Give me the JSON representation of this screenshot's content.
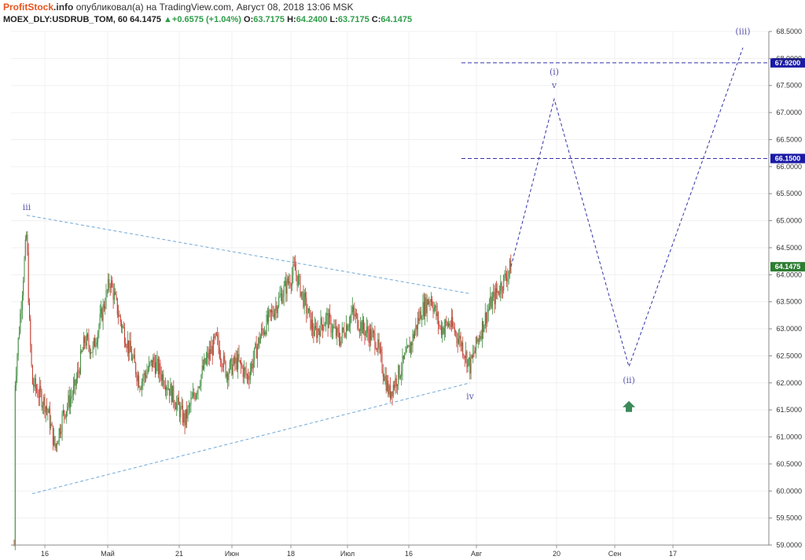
{
  "header": {
    "brand_part1": "Profit",
    "brand_part2": "Stock",
    "brand_part3": ".info",
    "published_text": " опубликовал(а) на TradingView.com, Август 08, 2018 13:06 MSK",
    "symbol": "MOEX_DLY:USDRUB_TOM, 60",
    "last": "64.1475",
    "change_arrow": "▲",
    "change": "+0.6575 (+1.04%)",
    "o_label": "O:",
    "o_value": "63.7175",
    "h_label": "H:",
    "h_value": "64.2400",
    "l_label": "L:",
    "l_value": "63.7175",
    "c_label": "C:",
    "c_value": "64.1475"
  },
  "colors": {
    "up_candle": "#3c8a3c",
    "down_candle": "#c0392b",
    "trendline": "#6fa8d8",
    "projection": "#3333aa",
    "level_tag": "#1a1aa6",
    "last_price_tag": "#2e7d32",
    "arrow": "#3a8a5a",
    "wave_label": "#5a5ab0"
  },
  "chart_data": {
    "type": "candlestick",
    "symbol": "MOEX_DLY:USDRUB_TOM",
    "timeframe": "60",
    "y_axis": {
      "range": [
        59.0,
        68.5
      ],
      "ticks": [
        "59.0000",
        "59.5000",
        "60.0000",
        "60.5000",
        "61.0000",
        "61.5000",
        "62.0000",
        "62.5000",
        "63.0000",
        "63.5000",
        "64.0000",
        "64.5000",
        "65.0000",
        "65.5000",
        "66.0000",
        "66.5000",
        "67.0000",
        "67.5000",
        "68.0000",
        "68.5000"
      ]
    },
    "x_axis": {
      "ticks": [
        "16",
        "Май",
        "21",
        "Июн",
        "18",
        "Июл",
        "16",
        "Авг",
        "20",
        "Сен",
        "17"
      ]
    },
    "price_series_approx": [
      {
        "x": "начало апреля",
        "y": 59.0
      },
      {
        "x": "начало апреля",
        "y": 60.5
      },
      {
        "x": "начало апреля",
        "y": 63.0
      },
      {
        "x": "начало апреля",
        "y": 61.8
      },
      {
        "x": "~11 апр",
        "y": 64.8
      },
      {
        "x": "~12 апр",
        "y": 63.2
      },
      {
        "x": "~13 апр",
        "y": 62.0
      },
      {
        "x": "~16 апр",
        "y": 61.6
      },
      {
        "x": "~17 апр",
        "y": 61.4
      },
      {
        "x": "~18 апр",
        "y": 60.8
      },
      {
        "x": "~20 апр",
        "y": 61.4
      },
      {
        "x": "~23 апр",
        "y": 61.9
      },
      {
        "x": "~25 апр",
        "y": 62.8
      },
      {
        "x": "~27 апр",
        "y": 62.6
      },
      {
        "x": "~30 апр",
        "y": 63.9
      },
      {
        "x": "~3 мая",
        "y": 63.2
      },
      {
        "x": "~7 мая",
        "y": 62.6
      },
      {
        "x": "~10 мая",
        "y": 62.0
      },
      {
        "x": "~14 мая",
        "y": 62.4
      },
      {
        "x": "~17 мая",
        "y": 62.0
      },
      {
        "x": "~21 мая",
        "y": 61.3
      },
      {
        "x": "~24 мая",
        "y": 61.9
      },
      {
        "x": "~28 мая",
        "y": 62.4
      },
      {
        "x": "~31 мая",
        "y": 62.8
      },
      {
        "x": "~4 июн",
        "y": 62.2
      },
      {
        "x": "~7 июн",
        "y": 62.4
      },
      {
        "x": "~11 июн",
        "y": 62.1
      },
      {
        "x": "~13 июн",
        "y": 62.9
      },
      {
        "x": "~18 июн",
        "y": 64.1
      },
      {
        "x": "~20 июн",
        "y": 63.6
      },
      {
        "x": "~22 июн",
        "y": 62.9
      },
      {
        "x": "~26 июн",
        "y": 63.2
      },
      {
        "x": "~29 июн",
        "y": 62.8
      },
      {
        "x": "~3 июл",
        "y": 63.3
      },
      {
        "x": "~6 июл",
        "y": 63.0
      },
      {
        "x": "~9 июл",
        "y": 62.8
      },
      {
        "x": "~11 июл",
        "y": 61.8
      },
      {
        "x": "~13 июл",
        "y": 62.1
      },
      {
        "x": "~16 июл",
        "y": 62.6
      },
      {
        "x": "~18 июл",
        "y": 63.3
      },
      {
        "x": "~20 июл",
        "y": 63.6
      },
      {
        "x": "~23 июл",
        "y": 63.0
      },
      {
        "x": "~25 июл",
        "y": 63.1
      },
      {
        "x": "~27 июл",
        "y": 62.8
      },
      {
        "x": "~30 июл",
        "y": 62.3
      },
      {
        "x": "~1 авг",
        "y": 62.9
      },
      {
        "x": "~3 авг",
        "y": 63.4
      },
      {
        "x": "~6 авг",
        "y": 63.8
      },
      {
        "x": "~8 авг",
        "y": 64.15
      }
    ],
    "trendlines": [
      {
        "name": "upper",
        "from": {
          "x": "~11 апр",
          "y": 65.1
        },
        "to": {
          "x": "~30 июл",
          "y": 63.65
        }
      },
      {
        "name": "lower",
        "from": {
          "x": "~13 апр",
          "y": 59.95
        },
        "to": {
          "x": "~30 июл",
          "y": 62.0
        }
      }
    ],
    "projection": {
      "points": [
        {
          "x": "~8 авг",
          "y": 64.15
        },
        {
          "x": "~20 авг",
          "y": 67.25
        },
        {
          "x": "~5 сен",
          "y": 62.3
        },
        {
          "x": "~26 сен",
          "y": 68.2
        }
      ]
    },
    "levels": [
      {
        "value": 67.92,
        "label": "67.9200"
      },
      {
        "value": 66.15,
        "label": "66.1500"
      }
    ],
    "last_price": {
      "value": 64.1475,
      "label": "64.1475"
    },
    "wave_labels": [
      {
        "text": "iii",
        "x": "~11 апр",
        "y": 65.2
      },
      {
        "text": "iv",
        "x": "~30 июл",
        "y": 61.7
      },
      {
        "text": "(i)",
        "x": "~20 авг",
        "y": 67.7
      },
      {
        "text": "v",
        "x": "~20 авг",
        "y": 67.45
      },
      {
        "text": "(ii)",
        "x": "~5 сен",
        "y": 62.0
      },
      {
        "text": "(iii)",
        "x": "~26 сен",
        "y": 68.45
      }
    ],
    "annotations": [
      {
        "type": "arrow-up",
        "x": "~5 сен",
        "y": 61.55
      }
    ]
  }
}
